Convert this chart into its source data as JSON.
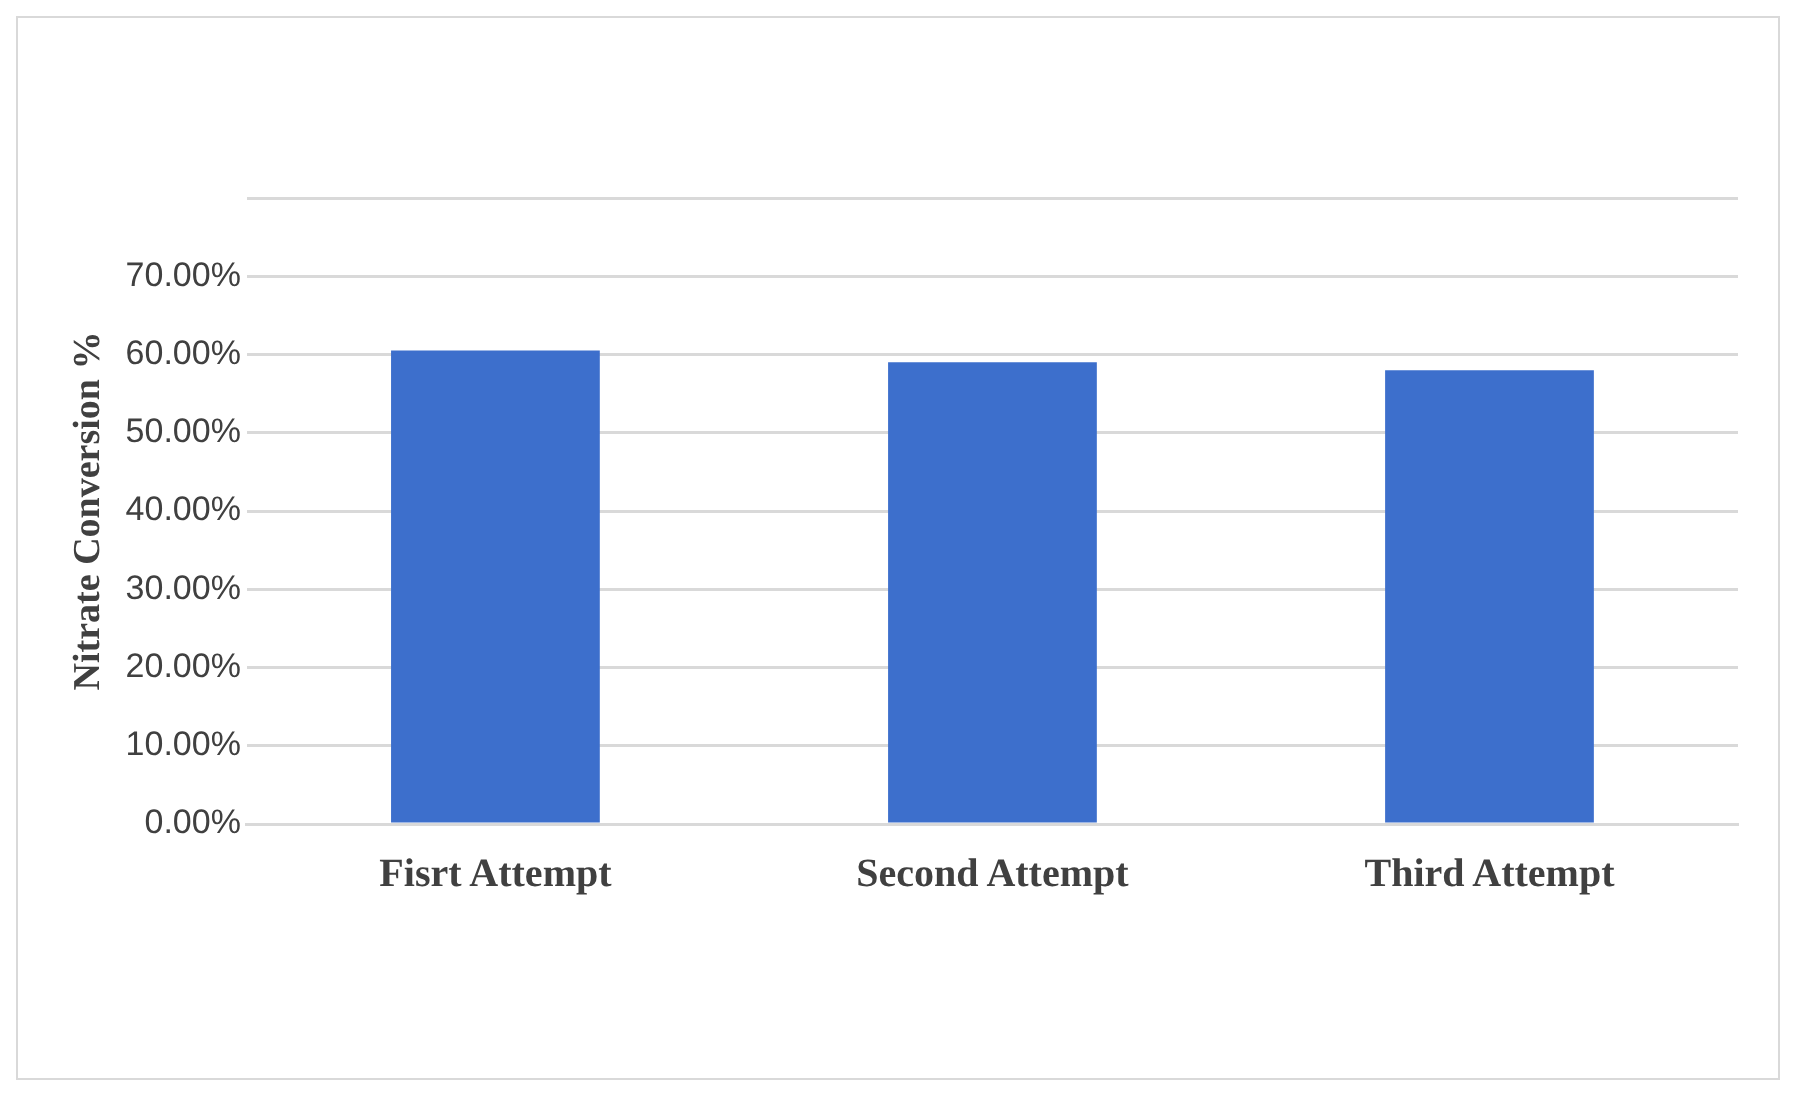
{
  "chart_data": {
    "type": "bar",
    "ylabel": "Nitrate Conversion %",
    "categories": [
      "Fisrt Attempt",
      "Second Attempt",
      "Third Attempt"
    ],
    "values": [
      60.5,
      59,
      58
    ],
    "color": "#3d6fcc",
    "ylim": [
      0,
      80
    ],
    "yticks": [
      {
        "value": 0,
        "label": "0.00%"
      },
      {
        "value": 10,
        "label": "10.00%"
      },
      {
        "value": 20,
        "label": "20.00%"
      },
      {
        "value": 30,
        "label": "30.00%"
      },
      {
        "value": 40,
        "label": "40.00%"
      },
      {
        "value": 50,
        "label": "50.00%"
      },
      {
        "value": 60,
        "label": "60.00%"
      },
      {
        "value": 70,
        "label": "70.00%"
      },
      {
        "value": 80,
        "label": null
      }
    ],
    "grid": "y",
    "legend": false
  }
}
